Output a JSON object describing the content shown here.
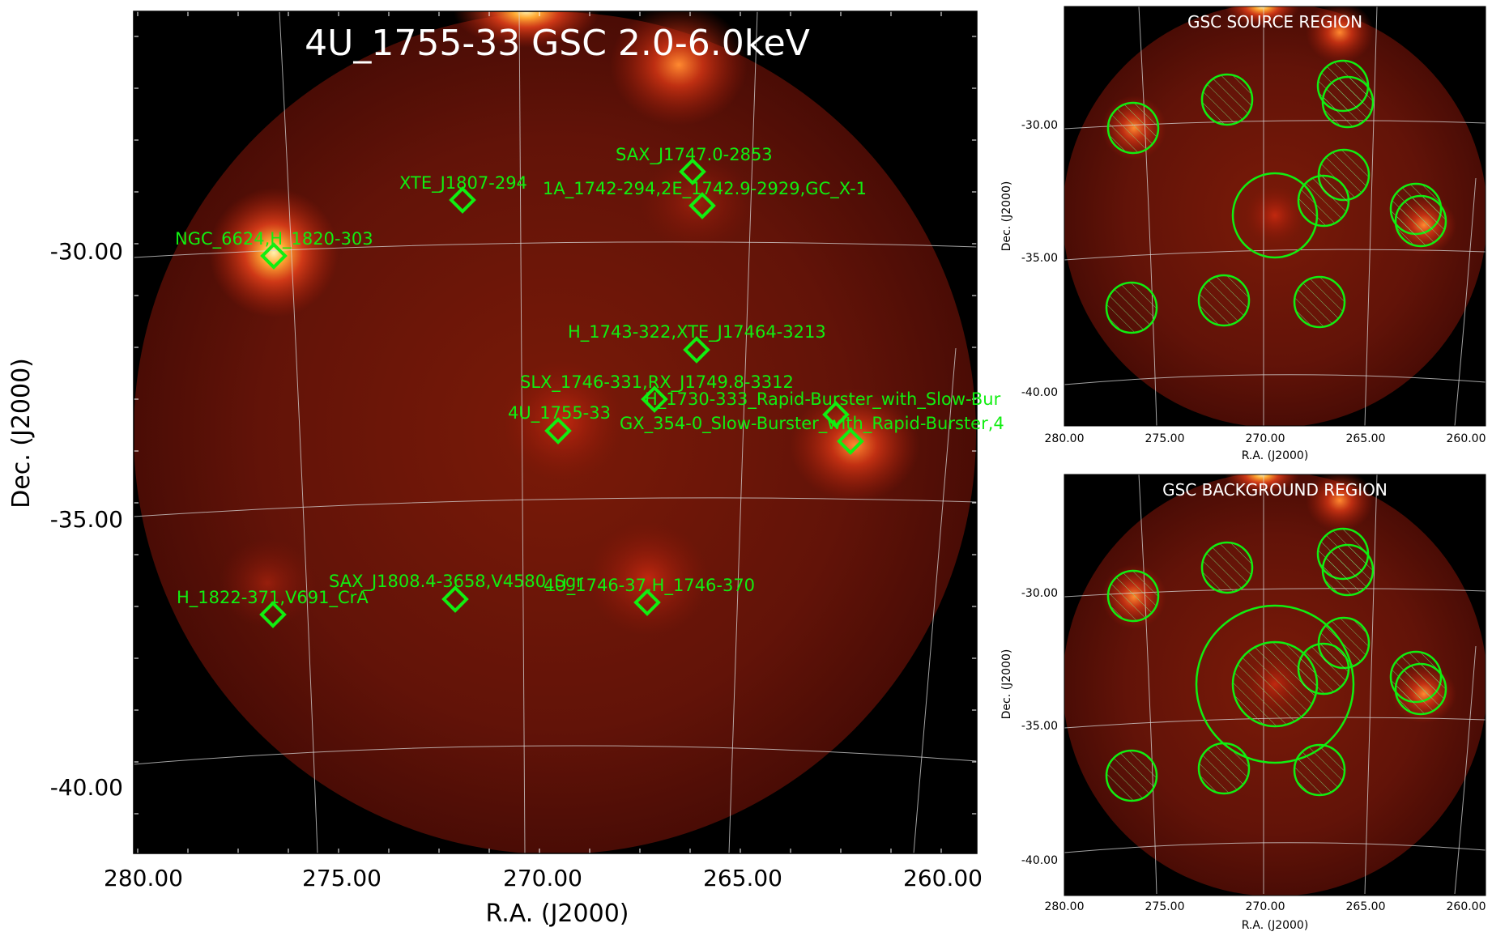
{
  "main": {
    "title": "4U_1755-33 GSC 2.0-6.0keV",
    "xlabel": "R.A. (J2000)",
    "ylabel": "Dec. (J2000)",
    "xticks": [
      "280.00",
      "275.00",
      "270.00",
      "265.00",
      "260.00"
    ],
    "yticks": [
      "-30.00",
      "-35.00",
      "-40.00"
    ],
    "sources": [
      {
        "label": "SAX_J1747.0-2853"
      },
      {
        "label": "XTE_J1807-294"
      },
      {
        "label": "1A_1742-294,2E_1742.9-2929,GC_X-1"
      },
      {
        "label": "NGC_6624,H_1820-303"
      },
      {
        "label": "H_1743-322,XTE_J17464-3213"
      },
      {
        "label": "SLX_1746-331,RX_J1749.8-3312"
      },
      {
        "label": "H_1730-333_Rapid-Burster_with_Slow-Bur"
      },
      {
        "label": "4U_1755-33"
      },
      {
        "label": "GX_354-0_Slow-Burster_with_Rapid-Burster,4"
      },
      {
        "label": "SAX_J1808.4-3658,V4580_Sgr"
      },
      {
        "label": "4U_1746-37,H_1746-370"
      },
      {
        "label": "H_1822-371,V691_CrA"
      }
    ]
  },
  "panels": [
    {
      "title": "GSC SOURCE REGION",
      "xlabel": "R.A. (J2000)",
      "ylabel": "Dec. (J2000)",
      "xticks": [
        "280.00",
        "275.00",
        "270.00",
        "265.00",
        "260.00"
      ],
      "yticks": [
        "-30.00",
        "-35.00",
        "-40.00"
      ]
    },
    {
      "title": "GSC BACKGROUND REGION",
      "xlabel": "R.A. (J2000)",
      "ylabel": "Dec. (J2000)",
      "xticks": [
        "280.00",
        "275.00",
        "270.00",
        "265.00",
        "260.00"
      ],
      "yticks": [
        "-30.00",
        "-35.00",
        "-40.00"
      ]
    }
  ],
  "colors": {
    "marker": "#11ee11",
    "grid": "#d8d8d8",
    "background": "#000000"
  }
}
